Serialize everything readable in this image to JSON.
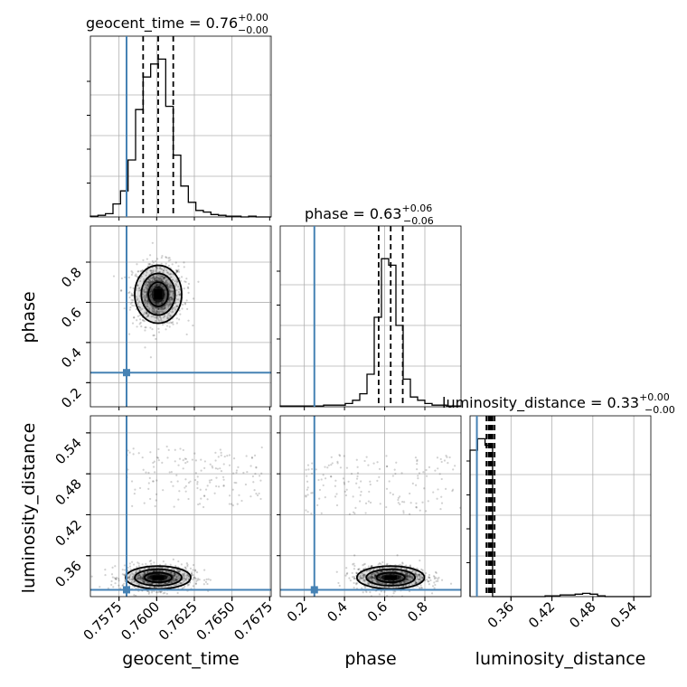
{
  "chart_data": {
    "type": "corner",
    "parameters": [
      "geocent_time",
      "phase",
      "luminosity_distance"
    ],
    "truth": {
      "geocent_time": 0.758,
      "phase": 0.25,
      "luminosity_distance": 0.31
    },
    "titles": [
      {
        "name": "geocent_time",
        "median": "0.76",
        "plus": "+0.00",
        "minus": "−0.00"
      },
      {
        "name": "phase",
        "median": "0.63",
        "plus": "+0.06",
        "minus": "−0.06"
      },
      {
        "name": "luminosity_distance",
        "median": "0.33",
        "plus": "+0.00",
        "minus": "−0.00"
      }
    ],
    "axes": {
      "geocent_time": {
        "range": [
          0.7556,
          0.7676
        ],
        "ticks": [
          0.7575,
          0.76,
          0.7625,
          0.765,
          0.7675
        ],
        "tick_labels": [
          "0.7575",
          "0.7600",
          "0.7625",
          "0.7650",
          "0.7675"
        ]
      },
      "phase": {
        "range": [
          0.08,
          0.98
        ],
        "ticks": [
          0.2,
          0.4,
          0.6,
          0.8
        ],
        "tick_labels": [
          "0.2",
          "0.4",
          "0.6",
          "0.8"
        ]
      },
      "luminosity_distance": {
        "range": [
          0.3,
          0.565
        ],
        "ticks": [
          0.36,
          0.42,
          0.48,
          0.54
        ],
        "tick_labels": [
          "0.36",
          "0.42",
          "0.48",
          "0.54"
        ]
      }
    },
    "histograms": {
      "geocent_time": {
        "bin_edges": [
          0.7556,
          0.7561,
          0.7566,
          0.7571,
          0.7576,
          0.7581,
          0.7586,
          0.7591,
          0.7596,
          0.7601,
          0.7606,
          0.7611,
          0.7616,
          0.7621,
          0.7626,
          0.7631,
          0.7636,
          0.7641,
          0.7646,
          0.7651,
          0.7656,
          0.7661,
          0.7666,
          0.7671,
          0.7676
        ],
        "counts": [
          0.005,
          0.01,
          0.02,
          0.08,
          0.16,
          0.35,
          0.66,
          0.86,
          0.94,
          0.97,
          0.68,
          0.38,
          0.19,
          0.09,
          0.04,
          0.03,
          0.015,
          0.01,
          0.005,
          0.005,
          0.0,
          0.005,
          0.0,
          0.0
        ],
        "quantiles": [
          0.7591,
          0.7601,
          0.7611
        ]
      },
      "phase": {
        "bin_edges": [
          0.08,
          0.116,
          0.152,
          0.188,
          0.224,
          0.26,
          0.296,
          0.332,
          0.368,
          0.404,
          0.44,
          0.476,
          0.512,
          0.548,
          0.584,
          0.62,
          0.656,
          0.692,
          0.728,
          0.764,
          0.8,
          0.836,
          0.872,
          0.908,
          0.944,
          0.98
        ],
        "counts": [
          0.005,
          0.005,
          0.005,
          0.005,
          0.005,
          0.005,
          0.01,
          0.01,
          0.01,
          0.02,
          0.04,
          0.08,
          0.2,
          0.55,
          0.91,
          0.87,
          0.5,
          0.17,
          0.06,
          0.04,
          0.02,
          0.01,
          0.01,
          0.005,
          0.005
        ],
        "quantiles": [
          0.57,
          0.63,
          0.69
        ]
      },
      "luminosity_distance": {
        "bin_edges": [
          0.3,
          0.311,
          0.322,
          0.333,
          0.344,
          0.355,
          0.366,
          0.377,
          0.388,
          0.399,
          0.41,
          0.421,
          0.432,
          0.443,
          0.454,
          0.465,
          0.476,
          0.487,
          0.498,
          0.509,
          0.52,
          0.531,
          0.542,
          0.553,
          0.564
        ],
        "counts": [
          0.9,
          0.97,
          0.93,
          0.0,
          0.0,
          0.0,
          0.0,
          0.0,
          0.0,
          0.0,
          0.005,
          0.005,
          0.01,
          0.01,
          0.015,
          0.02,
          0.015,
          0.005,
          0.0,
          0.0,
          0.0,
          0.0,
          0.0,
          0.0
        ],
        "quantiles": [
          0.324,
          0.327,
          0.329,
          0.331,
          0.333,
          0.336
        ]
      }
    },
    "joint": {
      "phase_vs_geocent_time": {
        "center": [
          0.7601,
          0.64
        ],
        "sigma": [
          0.00065,
          0.06
        ]
      },
      "luminosity_distance_vs_geocent_time": {
        "center": [
          0.7601,
          0.328
        ],
        "sigma": [
          0.0009,
          0.007
        ]
      },
      "luminosity_distance_vs_phase": {
        "center": [
          0.63,
          0.328
        ],
        "sigma": [
          0.07,
          0.007
        ]
      }
    },
    "colors": {
      "truth": "#4682b4",
      "grid": "#b0b0b0",
      "line": "#000000",
      "points": "#000000"
    },
    "grid": true
  }
}
